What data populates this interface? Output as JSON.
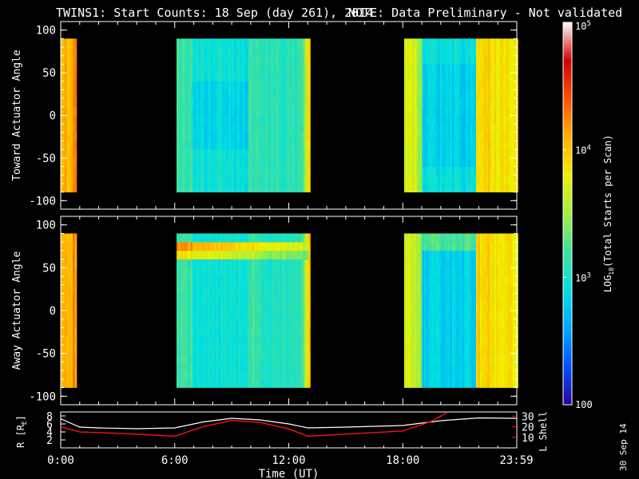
{
  "title_main": "TWINS1: Start Counts: 18 Sep (day 261), 2014",
  "title_note": "NOTE: Data Preliminary - Not validated",
  "date_stamp": "30 Sep 14",
  "colors": {
    "note": "#ff2020",
    "r_line": "#ffffff",
    "l_line": "#ff1010",
    "axis": "#ffffff",
    "background": "#000000"
  },
  "chart_data": [
    {
      "type": "heatmap",
      "ylabel": "Toward Actuator Angle",
      "ylim": [
        -110,
        110
      ],
      "yticks": [
        "100",
        "50",
        "0",
        "-50",
        "-100"
      ],
      "ytick_values": [
        100,
        50,
        0,
        -50,
        -100
      ],
      "angle_range": [
        -90,
        90
      ],
      "data_segments_hours": [
        [
          0.0,
          0.75
        ],
        [
          6.0,
          13.1
        ],
        [
          18.0,
          24.0
        ]
      ]
    },
    {
      "type": "heatmap",
      "ylabel": "Away Actuator Angle",
      "ylim": [
        -110,
        110
      ],
      "yticks": [
        "100",
        "50",
        "0",
        "-50",
        "-100"
      ],
      "ytick_values": [
        100,
        50,
        0,
        -50,
        -100
      ],
      "angle_range": [
        -90,
        90
      ],
      "data_segments_hours": [
        [
          0.0,
          0.75
        ],
        [
          6.0,
          13.1
        ],
        [
          18.0,
          24.0
        ]
      ]
    },
    {
      "type": "line",
      "ylabel_left": "R [R",
      "ylabel_left_sub": "E",
      "ylabel_right": "L Shell",
      "xlabel": "Time (UT)",
      "xticks": [
        "0:00",
        "6:00",
        "12:00",
        "18:00",
        "23:59"
      ],
      "xtick_hours": [
        0,
        6,
        12,
        18,
        23.98
      ],
      "left_yticks": [
        "8",
        "6",
        "4",
        "2"
      ],
      "left_ytick_values": [
        8,
        6,
        4,
        2
      ],
      "right_yticks": [
        "30",
        "20",
        "10"
      ],
      "right_ytick_values": [
        30,
        20,
        10
      ],
      "series": [
        {
          "name": "R [RE]",
          "x": [
            0,
            1,
            2,
            4,
            6,
            7.5,
            9,
            10.5,
            12,
            13,
            15,
            18,
            20,
            22,
            23.98
          ],
          "y": [
            7.3,
            5.2,
            5.0,
            4.8,
            5.0,
            6.5,
            7.4,
            7.0,
            6.0,
            5.0,
            5.2,
            5.6,
            6.8,
            7.5,
            7.4
          ]
        },
        {
          "name": "L Shell",
          "x": [
            0,
            1,
            2,
            4,
            6,
            7.5,
            9,
            10.5,
            12,
            13,
            15,
            18,
            19.5,
            20.3
          ],
          "y": [
            20,
            15,
            14.5,
            13,
            11,
            20,
            26,
            24,
            18,
            11,
            13,
            16,
            25,
            33
          ]
        }
      ]
    }
  ],
  "colorbar": {
    "label": "LOG",
    "label_sub": "10",
    "label_rest": "(Total Starts per Scan)",
    "ticks": [
      {
        "base": "10",
        "exp": "5",
        "value": 100000
      },
      {
        "base": "10",
        "exp": "4",
        "value": 10000
      },
      {
        "base": "10",
        "exp": "3",
        "value": 1000
      },
      {
        "base": "100",
        "exp": "",
        "value": 100
      }
    ],
    "range": [
      100,
      100000
    ],
    "palette": [
      "#2c00a0",
      "#0050ff",
      "#00a8ff",
      "#00e0e0",
      "#40e0a0",
      "#a0f040",
      "#f0f000",
      "#ffb000",
      "#ff5000",
      "#d00000",
      "#ffffff"
    ]
  }
}
